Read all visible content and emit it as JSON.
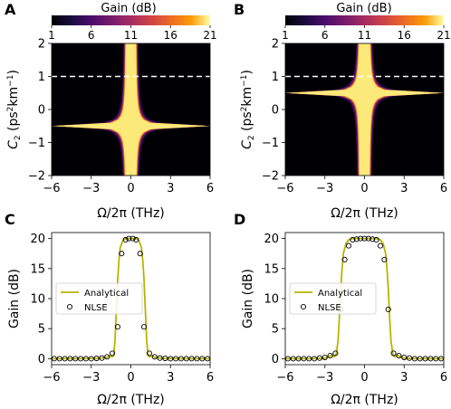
{
  "chart_data": [
    {
      "panel": "A",
      "type": "heatmap",
      "colorbar": {
        "label": "Gain (dB)",
        "ticks": [
          "1",
          "6",
          "11",
          "16",
          "21"
        ],
        "range": [
          1,
          21
        ]
      },
      "xlabel": "Ω/2π (THz)",
      "ylabel_main": "C",
      "ylabel_sub": "2",
      "ylabel_rest": " (ps",
      "ylabel_sup1": "2",
      "ylabel_mid": "km",
      "ylabel_sup2": "−1",
      "ylabel_end": ")",
      "xlim": [
        -6,
        6
      ],
      "ylim": [
        -2,
        2
      ],
      "xticks": [
        -6,
        -3,
        0,
        3,
        6
      ],
      "yticks": [
        -2,
        -1,
        0,
        1,
        2
      ],
      "xtick_labels": [
        "−6",
        "−3",
        "0",
        "3",
        "6"
      ],
      "ytick_labels": [
        "−2",
        "−1",
        "0",
        "1",
        "2"
      ],
      "dashed_line_y": 1,
      "center_C2": -0.5,
      "peak_gain_db": 21
    },
    {
      "panel": "B",
      "type": "heatmap",
      "colorbar": {
        "label": "Gain (dB)",
        "ticks": [
          "1",
          "6",
          "11",
          "16",
          "21"
        ],
        "range": [
          1,
          21
        ]
      },
      "xlabel": "Ω/2π (THz)",
      "ylabel_main": "C",
      "ylabel_sub": "2",
      "ylabel_rest": " (ps",
      "ylabel_sup1": "2",
      "ylabel_mid": "km",
      "ylabel_sup2": "−1",
      "ylabel_end": ")",
      "xlim": [
        -6,
        6
      ],
      "ylim": [
        -2,
        2
      ],
      "xticks": [
        -6,
        -3,
        0,
        3,
        6
      ],
      "yticks": [
        -2,
        -1,
        0,
        1,
        2
      ],
      "xtick_labels": [
        "−6",
        "−3",
        "0",
        "3",
        "6"
      ],
      "ytick_labels": [
        "−2",
        "−1",
        "0",
        "1",
        "2"
      ],
      "dashed_line_y": 1,
      "center_C2": 0.5,
      "peak_gain_db": 21
    },
    {
      "panel": "C",
      "type": "line",
      "xlabel": "Ω/2π (THz)",
      "ylabel": "Gain (dB)",
      "xlim": [
        -6,
        6
      ],
      "ylim": [
        -1,
        21
      ],
      "xticks": [
        -6,
        -3,
        0,
        3,
        6
      ],
      "yticks": [
        0,
        5,
        10,
        15,
        20
      ],
      "xtick_labels": [
        "−6",
        "−3",
        "0",
        "3",
        "6"
      ],
      "ytick_labels": [
        "0",
        "5",
        "10",
        "15",
        "20"
      ],
      "legend": {
        "placement": "center-left",
        "entries": [
          "Analytical",
          "NLSE"
        ]
      },
      "series": [
        {
          "name": "Analytical",
          "style": "line",
          "color": "#b8b400",
          "x": [
            -6,
            -4,
            -2.5,
            -1.8,
            -1.6,
            -1.45,
            -1.3,
            -1.2,
            -1.1,
            -1.0,
            -0.9,
            -0.8,
            -0.6,
            -0.4,
            -0.2,
            0,
            0.2,
            0.4,
            0.6,
            0.8,
            0.9,
            1.0,
            1.1,
            1.2,
            1.3,
            1.45,
            1.6,
            1.8,
            2.5,
            4,
            6
          ],
          "y": [
            0,
            0,
            0.05,
            0.2,
            0.5,
            0.3,
            0.5,
            3.0,
            8.0,
            13.0,
            16.5,
            18.5,
            19.7,
            20.0,
            20.0,
            20.0,
            20.0,
            20.0,
            19.7,
            18.5,
            16.5,
            13.0,
            8.0,
            3.0,
            0.5,
            0.3,
            0.5,
            0.2,
            0.05,
            0,
            0
          ]
        },
        {
          "name": "NLSE",
          "style": "markers",
          "x": [
            -5.8,
            -5.4,
            -5.0,
            -4.6,
            -4.2,
            -3.8,
            -3.4,
            -3.0,
            -2.6,
            -2.2,
            -1.8,
            -1.4,
            -1.0,
            -0.7,
            -0.4,
            -0.15,
            0.15,
            0.4,
            0.7,
            1.0,
            1.4,
            1.8,
            2.2,
            2.6,
            3.0,
            3.4,
            3.8,
            4.2,
            4.6,
            5.0,
            5.4,
            5.8
          ],
          "y": [
            0,
            0,
            0,
            0,
            0,
            0,
            0,
            0,
            0.05,
            0.1,
            0.3,
            0.9,
            5.3,
            17.5,
            19.8,
            20.0,
            20.0,
            19.8,
            17.5,
            5.3,
            0.9,
            0.3,
            0.1,
            0.05,
            0,
            0,
            0,
            0,
            0,
            0,
            0,
            0
          ]
        }
      ]
    },
    {
      "panel": "D",
      "type": "line",
      "xlabel": "Ω/2π (THz)",
      "ylabel": "Gain (dB)",
      "xlim": [
        -6,
        6
      ],
      "ylim": [
        -1,
        21
      ],
      "xticks": [
        -6,
        -3,
        0,
        3,
        6
      ],
      "yticks": [
        0,
        5,
        10,
        15,
        20
      ],
      "xtick_labels": [
        "−6",
        "−3",
        "0",
        "3",
        "6"
      ],
      "ytick_labels": [
        "0",
        "5",
        "10",
        "15",
        "20"
      ],
      "legend": {
        "placement": "center-left",
        "entries": [
          "Analytical",
          "NLSE"
        ]
      },
      "series": [
        {
          "name": "Analytical",
          "style": "line",
          "color": "#b8b400",
          "x": [
            -6,
            -4,
            -3.0,
            -2.7,
            -2.5,
            -2.3,
            -2.15,
            -2.0,
            -1.9,
            -1.8,
            -1.7,
            -1.6,
            -1.4,
            -1.2,
            -0.9,
            -0.6,
            -0.3,
            0,
            0.3,
            0.6,
            0.9,
            1.2,
            1.4,
            1.6,
            1.7,
            1.8,
            1.9,
            2.0,
            2.15,
            2.3,
            2.5,
            2.7,
            3.0,
            4,
            6
          ],
          "y": [
            0,
            0,
            0.1,
            0.3,
            0.6,
            0.3,
            0.6,
            3.0,
            7.0,
            11.5,
            15.0,
            17.5,
            19.2,
            19.8,
            20.0,
            20.0,
            20.0,
            20.0,
            20.0,
            20.0,
            20.0,
            19.8,
            19.2,
            17.5,
            15.0,
            11.5,
            7.0,
            3.0,
            0.6,
            0.3,
            0.6,
            0.3,
            0.1,
            0,
            0
          ]
        },
        {
          "name": "NLSE",
          "style": "markers",
          "x": [
            -5.8,
            -5.4,
            -5.0,
            -4.6,
            -4.2,
            -3.8,
            -3.4,
            -3.0,
            -2.6,
            -2.2,
            -1.8,
            -1.5,
            -1.2,
            -0.9,
            -0.6,
            -0.3,
            0,
            0.3,
            0.6,
            0.9,
            1.2,
            1.5,
            1.8,
            2.2,
            2.6,
            3.0,
            3.4,
            3.8,
            4.2,
            4.6,
            5.0,
            5.4,
            5.8
          ],
          "y": [
            0,
            0,
            0,
            0,
            0,
            0,
            0.1,
            0.2,
            0.5,
            0.9,
            8.2,
            16.5,
            18.8,
            19.8,
            19.9,
            20.0,
            20.0,
            20.0,
            19.9,
            19.8,
            18.8,
            16.5,
            8.2,
            0.9,
            0.5,
            0.2,
            0.1,
            0,
            0,
            0,
            0,
            0,
            0
          ]
        }
      ]
    }
  ]
}
